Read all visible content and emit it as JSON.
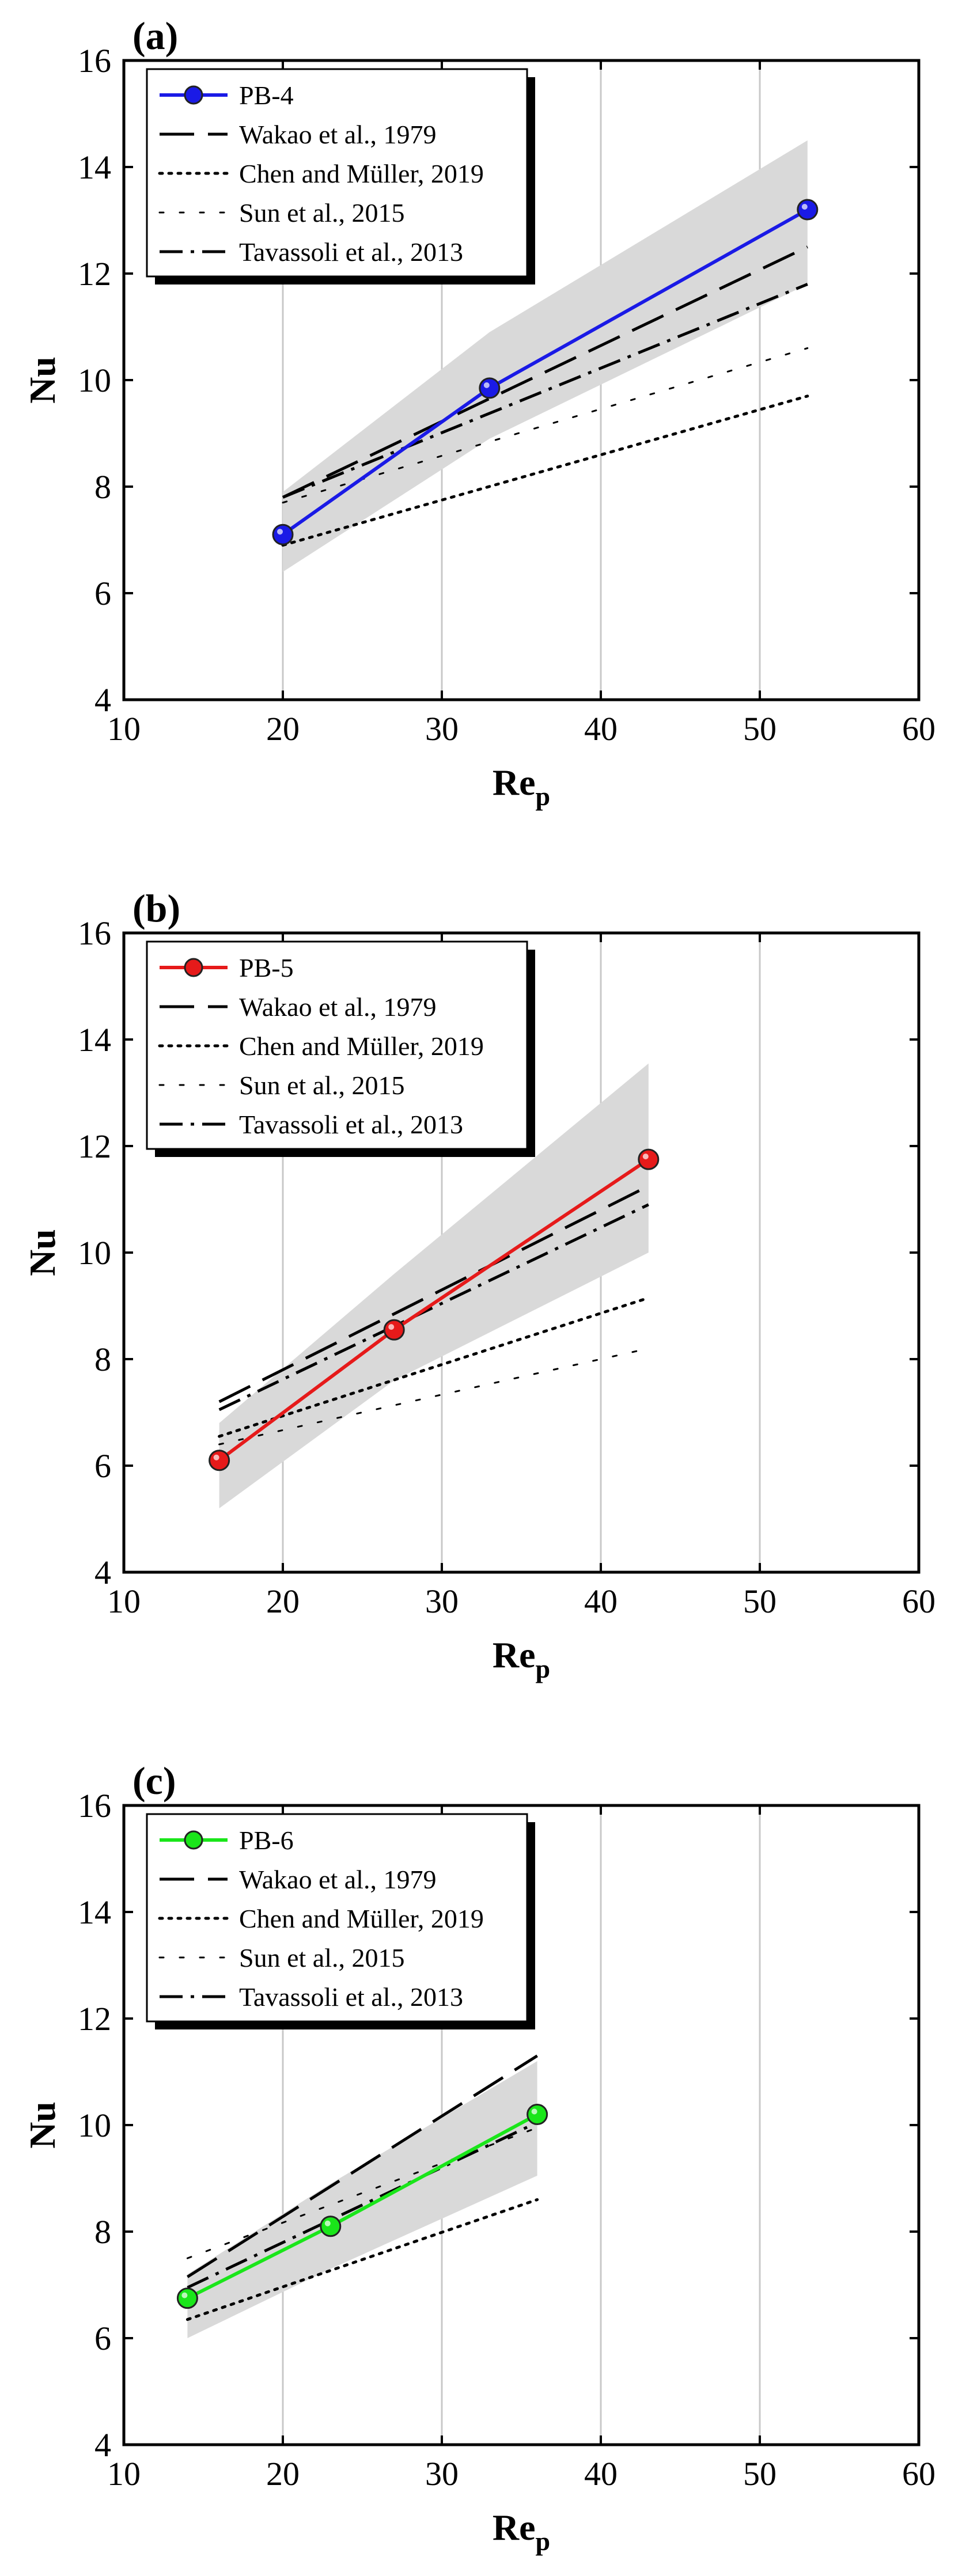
{
  "chart_data": [
    {
      "panel_label": "(a)",
      "type": "line",
      "xlabel": "Re",
      "xlabel_sub": "p",
      "ylabel": "Nu",
      "xlim": [
        10,
        60
      ],
      "ylim": [
        4,
        16
      ],
      "xticks": [
        "10",
        "20",
        "30",
        "40",
        "50",
        "60"
      ],
      "yticks": [
        "4",
        "6",
        "8",
        "10",
        "12",
        "14",
        "16"
      ],
      "grid": "vertical",
      "legend_position": "top-left",
      "series": [
        {
          "name": "PB-4",
          "style": "solid-marker",
          "color": "#1a1ae6",
          "x": [
            20,
            33,
            53
          ],
          "y": [
            7.1,
            9.85,
            13.2
          ]
        },
        {
          "name": "Wakao et al., 1979",
          "style": "dash",
          "color": "#000000",
          "x": [
            20,
            53
          ],
          "y": [
            7.8,
            12.5
          ]
        },
        {
          "name": "Chen and Müller, 2019",
          "style": "dot",
          "color": "#000000",
          "x": [
            20,
            53
          ],
          "y": [
            6.9,
            9.7
          ]
        },
        {
          "name": "Sun et al., 2015",
          "style": "sparse-dot",
          "color": "#000000",
          "x": [
            20,
            53
          ],
          "y": [
            7.7,
            10.6
          ]
        },
        {
          "name": "Tavassoli et al., 2013",
          "style": "dash-dot",
          "color": "#000000",
          "x": [
            20,
            53
          ],
          "y": [
            7.8,
            11.8
          ]
        }
      ],
      "band": {
        "x": [
          20,
          33,
          53
        ],
        "lower": [
          6.4,
          8.9,
          11.8
        ],
        "upper": [
          7.9,
          10.9,
          14.5
        ]
      }
    },
    {
      "panel_label": "(b)",
      "type": "line",
      "xlabel": "Re",
      "xlabel_sub": "p",
      "ylabel": "Nu",
      "xlim": [
        10,
        60
      ],
      "ylim": [
        4,
        16
      ],
      "xticks": [
        "10",
        "20",
        "30",
        "40",
        "50",
        "60"
      ],
      "yticks": [
        "4",
        "6",
        "8",
        "10",
        "12",
        "14",
        "16"
      ],
      "grid": "vertical",
      "legend_position": "top-left",
      "series": [
        {
          "name": "PB-5",
          "style": "solid-marker",
          "color": "#e61a1a",
          "x": [
            16,
            27,
            43
          ],
          "y": [
            6.1,
            8.55,
            11.75
          ]
        },
        {
          "name": "Wakao et al., 1979",
          "style": "dash",
          "color": "#000000",
          "x": [
            16,
            43
          ],
          "y": [
            7.2,
            11.25
          ]
        },
        {
          "name": "Chen and Müller, 2019",
          "style": "dot",
          "color": "#000000",
          "x": [
            16,
            43
          ],
          "y": [
            6.55,
            9.15
          ]
        },
        {
          "name": "Sun et al., 2015",
          "style": "sparse-dot",
          "color": "#000000",
          "x": [
            16,
            43
          ],
          "y": [
            6.4,
            8.2
          ]
        },
        {
          "name": "Tavassoli et al., 2013",
          "style": "dash-dot",
          "color": "#000000",
          "x": [
            16,
            43
          ],
          "y": [
            7.05,
            10.9
          ]
        }
      ],
      "band": {
        "x": [
          16,
          27,
          43
        ],
        "lower": [
          5.2,
          7.6,
          10.0
        ],
        "upper": [
          6.8,
          9.6,
          13.55
        ]
      }
    },
    {
      "panel_label": "(c)",
      "type": "line",
      "xlabel": "Re",
      "xlabel_sub": "p",
      "ylabel": "Nu",
      "xlim": [
        10,
        60
      ],
      "ylim": [
        4,
        16
      ],
      "xticks": [
        "10",
        "20",
        "30",
        "40",
        "50",
        "60"
      ],
      "yticks": [
        "4",
        "6",
        "8",
        "10",
        "12",
        "14",
        "16"
      ],
      "grid": "vertical",
      "legend_position": "top-left",
      "series": [
        {
          "name": "PB-6",
          "style": "solid-marker",
          "color": "#1ae61a",
          "x": [
            14,
            23,
            36
          ],
          "y": [
            6.75,
            8.1,
            10.2
          ]
        },
        {
          "name": "Wakao et al., 1979",
          "style": "dash",
          "color": "#000000",
          "x": [
            14,
            36
          ],
          "y": [
            7.15,
            11.3
          ]
        },
        {
          "name": "Chen and Müller, 2019",
          "style": "dot",
          "color": "#000000",
          "x": [
            14,
            36
          ],
          "y": [
            6.35,
            8.6
          ]
        },
        {
          "name": "Sun et al., 2015",
          "style": "sparse-dot",
          "color": "#000000",
          "x": [
            14,
            36
          ],
          "y": [
            7.5,
            9.95
          ]
        },
        {
          "name": "Tavassoli et al., 2013",
          "style": "dash-dot",
          "color": "#000000",
          "x": [
            14,
            36
          ],
          "y": [
            6.95,
            10.05
          ]
        }
      ],
      "band": {
        "x": [
          14,
          23,
          36
        ],
        "lower": [
          6.0,
          7.3,
          9.05
        ],
        "upper": [
          7.2,
          8.9,
          11.2
        ]
      }
    }
  ]
}
